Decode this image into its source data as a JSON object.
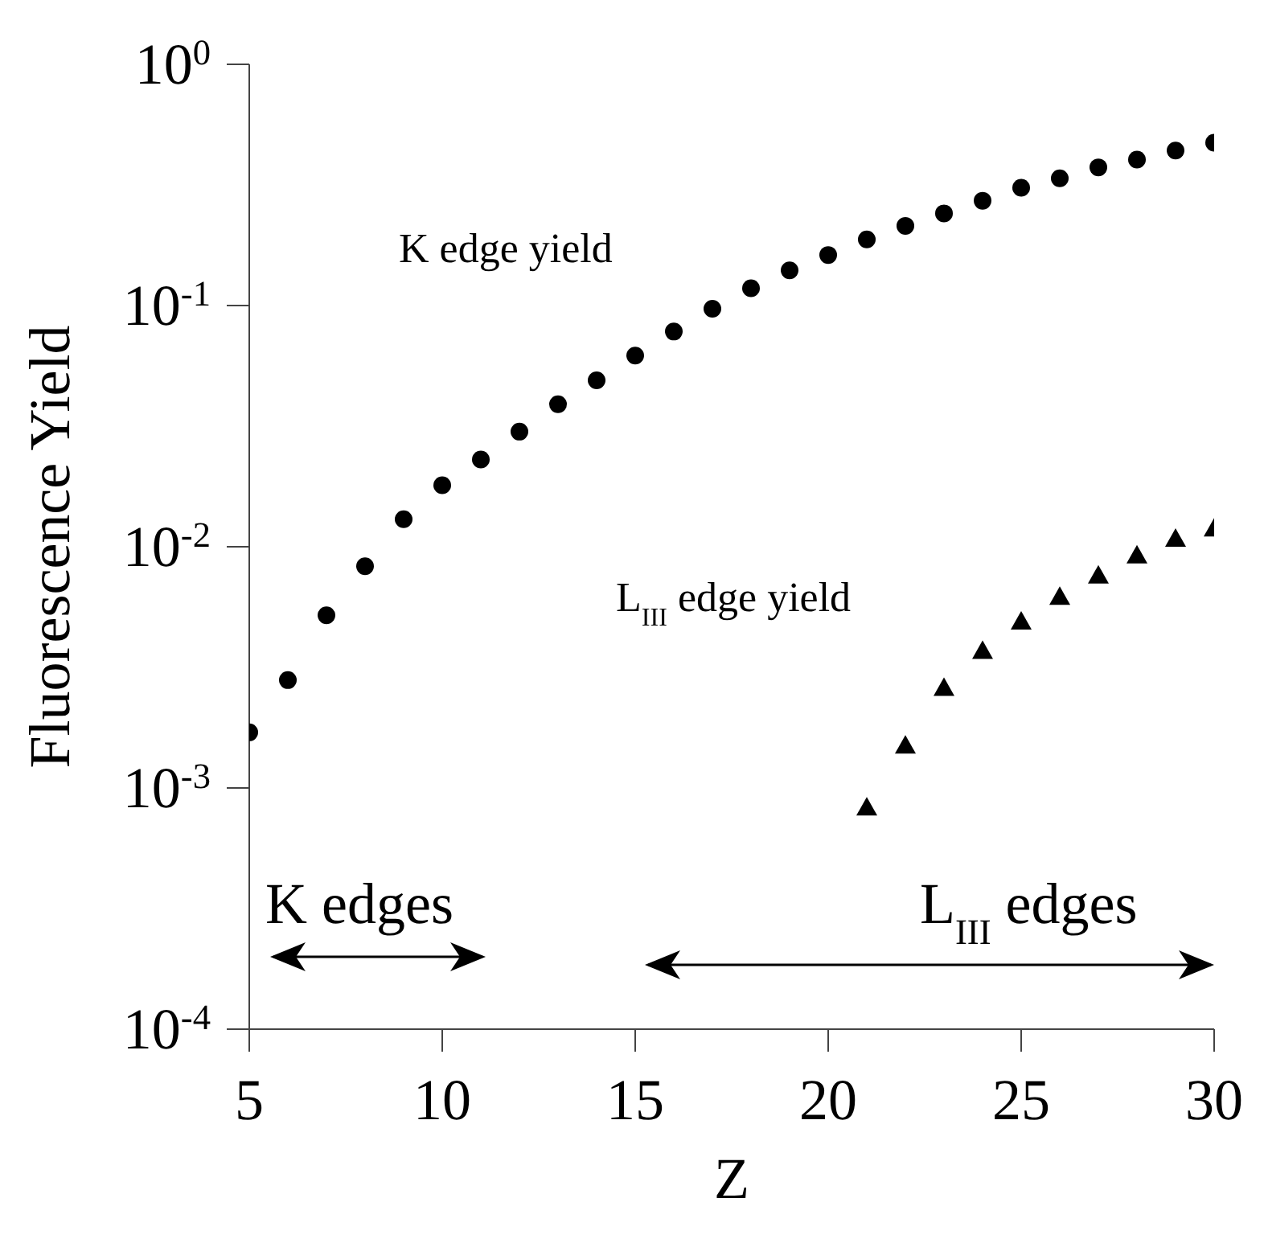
{
  "chart_data": {
    "type": "scatter",
    "xlabel": "Z",
    "ylabel": "Fluorescence Yield",
    "x": [
      5,
      6,
      7,
      8,
      9,
      10,
      11,
      12,
      13,
      14,
      15,
      16,
      17,
      18,
      19,
      20,
      21,
      22,
      23,
      24,
      25,
      26,
      27,
      28,
      29,
      30
    ],
    "series": [
      {
        "color": "#000000",
        "marker": "circle",
        "values": [
          0.0017,
          0.0028,
          0.0052,
          0.0083,
          0.013,
          0.018,
          0.023,
          0.03,
          0.039,
          0.049,
          0.062,
          0.078,
          0.097,
          0.118,
          0.14,
          0.162,
          0.188,
          0.214,
          0.241,
          0.272,
          0.308,
          0.337,
          0.374,
          0.403,
          0.439,
          0.473
        ]
      },
      {
        "color": "#000000",
        "marker": "triangle",
        "x": [
          21,
          22,
          23,
          24,
          25,
          26,
          27,
          28,
          29,
          30
        ],
        "values": [
          0.00083,
          0.0015,
          0.0026,
          0.0037,
          0.0049,
          0.0062,
          0.0076,
          0.0092,
          0.0108,
          0.0119
        ]
      }
    ],
    "log": "y",
    "xlim": [
      5,
      30
    ],
    "xticks": [
      5,
      10,
      15,
      20,
      25,
      30
    ],
    "ylim": [
      0.0001,
      1
    ],
    "yticks": [
      {
        "value": 0.0001,
        "label": "10$^{-4}$"
      },
      {
        "value": 0.001,
        "label": "10$^{-3}$"
      },
      {
        "value": 0.01,
        "label": "10$^{-2}$"
      },
      {
        "value": 0.1,
        "label": "10$^{-1}$"
      },
      {
        "value": 1,
        "label": "10$^{0}$"
      }
    ],
    "grid": false,
    "legend": false,
    "annotations": [
      "K edge yield",
      "L$_{III}$ edge yield",
      "K edges",
      "L$_{III}$ edges"
    ]
  }
}
